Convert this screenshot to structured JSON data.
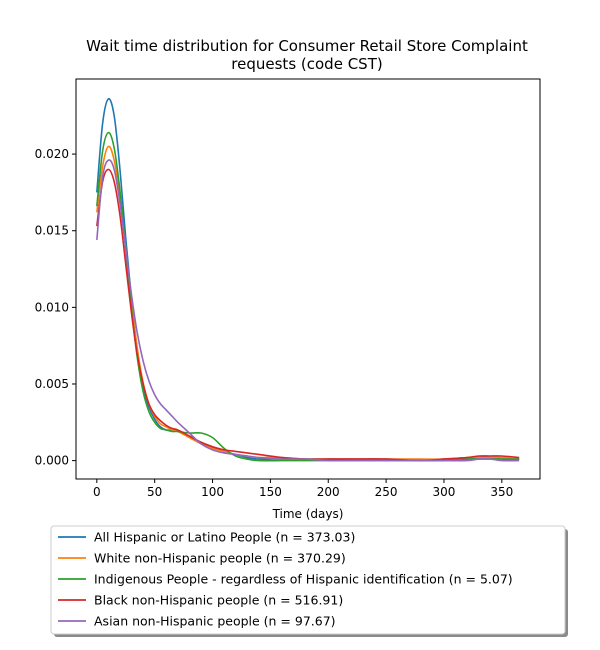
{
  "chart_data": {
    "type": "line",
    "title": [
      "Wait time distribution  for Consumer Retail Store Complaint",
      "requests (code CST)"
    ],
    "xlabel": "Time (days)",
    "ylabel": "",
    "xlim": [
      -18,
      383
    ],
    "ylim": [
      -0.0012,
      0.0249
    ],
    "xticks": [
      0,
      50,
      100,
      150,
      200,
      250,
      300,
      350
    ],
    "xtick_labels": [
      "0",
      "50",
      "100",
      "150",
      "200",
      "250",
      "300",
      "350"
    ],
    "yticks": [
      0.0,
      0.005,
      0.01,
      0.015,
      0.02
    ],
    "ytick_labels": [
      "0.000",
      "0.005",
      "0.010",
      "0.015",
      "0.020"
    ],
    "legend_position": "below",
    "series": [
      {
        "name": "All Hispanic or Latino People (n = 373.03)",
        "color": "#1f77b4",
        "x": [
          0,
          5,
          10,
          15,
          20,
          25,
          30,
          35,
          40,
          45,
          50,
          55,
          60,
          65,
          70,
          80,
          90,
          100,
          110,
          120,
          130,
          140,
          160,
          180,
          200,
          220,
          250,
          280,
          300,
          320,
          330,
          340,
          350,
          365
        ],
        "y": [
          0.0175,
          0.022,
          0.0236,
          0.0225,
          0.019,
          0.0145,
          0.0105,
          0.0072,
          0.0048,
          0.0035,
          0.0027,
          0.0022,
          0.002,
          0.002,
          0.0019,
          0.0016,
          0.0012,
          0.0009,
          0.0006,
          0.0004,
          0.0002,
          0.0001,
          0.0001,
          0.0001,
          0.0001,
          0.0001,
          0.0001,
          0.0,
          0.0001,
          0.0001,
          0.0002,
          0.0002,
          0.0001,
          0.0001
        ]
      },
      {
        "name": "White non-Hispanic people (n = 370.29)",
        "color": "#ff7f0e",
        "x": [
          0,
          5,
          10,
          15,
          20,
          25,
          30,
          35,
          40,
          45,
          50,
          55,
          60,
          65,
          70,
          80,
          90,
          100,
          110,
          120,
          130,
          140,
          160,
          180,
          200,
          220,
          250,
          280,
          300,
          320,
          330,
          340,
          350,
          365
        ],
        "y": [
          0.0162,
          0.0192,
          0.0205,
          0.0196,
          0.0172,
          0.0138,
          0.0103,
          0.0073,
          0.0051,
          0.0037,
          0.0029,
          0.0024,
          0.0022,
          0.002,
          0.0019,
          0.0015,
          0.0011,
          0.0008,
          0.0006,
          0.0004,
          0.0003,
          0.0002,
          0.0002,
          0.0001,
          0.0001,
          0.0001,
          0.0001,
          0.0001,
          0.0001,
          0.0002,
          0.0002,
          0.0002,
          0.0002,
          0.0001
        ]
      },
      {
        "name": "Indigenous People - regardless of Hispanic identification (n = 5.07)",
        "color": "#2ca02c",
        "x": [
          0,
          5,
          10,
          15,
          20,
          25,
          30,
          35,
          40,
          45,
          50,
          55,
          60,
          65,
          70,
          80,
          90,
          100,
          110,
          120,
          130,
          140,
          160,
          180,
          200,
          220,
          250,
          280,
          300,
          320,
          330,
          340,
          350,
          365
        ],
        "y": [
          0.0166,
          0.0202,
          0.0214,
          0.0204,
          0.0176,
          0.0138,
          0.0099,
          0.0067,
          0.0045,
          0.0032,
          0.0025,
          0.0021,
          0.002,
          0.0019,
          0.0019,
          0.0018,
          0.0018,
          0.0015,
          0.0008,
          0.0003,
          0.0001,
          0.0,
          0.0,
          0.0,
          0.0,
          0.0,
          0.0,
          0.0,
          0.0,
          0.0001,
          0.0001,
          0.0001,
          0.0001,
          0.0001
        ]
      },
      {
        "name": "Black non-Hispanic people (n = 516.91)",
        "color": "#d62728",
        "x": [
          0,
          5,
          10,
          15,
          20,
          25,
          30,
          35,
          40,
          45,
          50,
          55,
          60,
          65,
          70,
          80,
          90,
          100,
          110,
          120,
          130,
          140,
          160,
          180,
          200,
          220,
          250,
          280,
          300,
          320,
          330,
          340,
          350,
          365
        ],
        "y": [
          0.0153,
          0.0182,
          0.019,
          0.0182,
          0.016,
          0.0128,
          0.0096,
          0.0069,
          0.005,
          0.0037,
          0.003,
          0.0026,
          0.0023,
          0.0021,
          0.002,
          0.0016,
          0.0012,
          0.0009,
          0.0007,
          0.0006,
          0.0005,
          0.0004,
          0.0002,
          0.0001,
          0.0001,
          0.0001,
          0.0001,
          0.0,
          0.0001,
          0.0002,
          0.0003,
          0.0003,
          0.0003,
          0.0002
        ]
      },
      {
        "name": "Asian non-Hispanic people (n = 97.67)",
        "color": "#9467bd",
        "x": [
          0,
          5,
          10,
          15,
          20,
          25,
          30,
          35,
          40,
          45,
          50,
          55,
          60,
          65,
          70,
          80,
          90,
          100,
          110,
          120,
          130,
          140,
          160,
          180,
          200,
          220,
          250,
          280,
          300,
          320,
          330,
          340,
          350,
          365
        ],
        "y": [
          0.0144,
          0.0185,
          0.0196,
          0.019,
          0.0168,
          0.0138,
          0.0108,
          0.0083,
          0.0065,
          0.0052,
          0.0043,
          0.0037,
          0.0033,
          0.0029,
          0.0025,
          0.0018,
          0.0011,
          0.0007,
          0.0005,
          0.0004,
          0.0003,
          0.0002,
          0.0001,
          0.0001,
          0.0,
          0.0,
          0.0,
          0.0,
          0.0,
          0.0,
          0.0001,
          0.0001,
          0.0,
          0.0
        ]
      }
    ]
  }
}
